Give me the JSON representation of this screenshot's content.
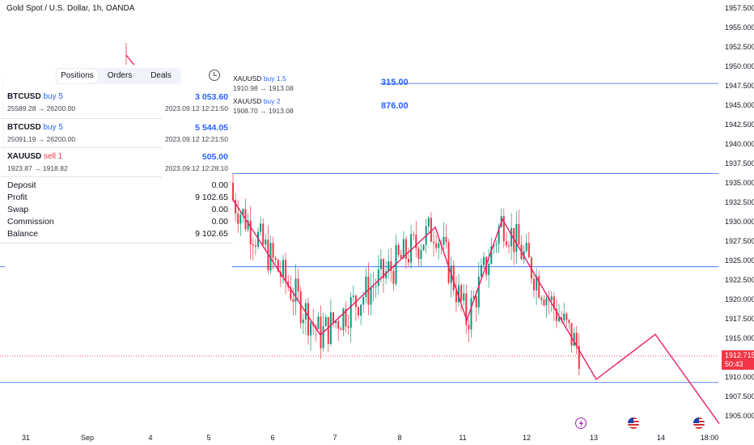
{
  "symbol_title": "Gold Spot / U.S. Dollar, 1h, OANDA",
  "colors": {
    "up": "#089981",
    "down": "#f23645",
    "zigzag": "#e91e63",
    "hline": "#2962ff",
    "accent": "#2962ff"
  },
  "price_axis": {
    "min": 1904,
    "max": 1958,
    "ticks": [
      "1957.500",
      "1955.000",
      "1952.500",
      "1950.000",
      "1947.500",
      "1945.000",
      "1942.500",
      "1940.000",
      "1937.500",
      "1935.000",
      "1932.500",
      "1930.000",
      "1927.500",
      "1925.000",
      "1922.500",
      "1920.000",
      "1917.500",
      "1915.000",
      "1912.500",
      "1910.000",
      "1907.500",
      "1905.000"
    ]
  },
  "time_axis": {
    "labels": [
      "31",
      "Sep",
      "4",
      "5",
      "6",
      "7",
      "8",
      "11",
      "12",
      "13",
      "14",
      "18:00"
    ]
  },
  "current_price": {
    "value": "1912.715",
    "countdown": "50:43"
  },
  "panel": {
    "tabs": [
      {
        "label": "Positions",
        "active": true
      },
      {
        "label": "Orders",
        "active": false
      },
      {
        "label": "Deals",
        "active": false
      }
    ],
    "clock_icon": "clock-icon",
    "positions": [
      {
        "symbol": "BTCUSD",
        "side": "buy 5",
        "type": "buy",
        "profit": "3 053.60",
        "prices": "25589.28 → 26200.00",
        "time": "2023.09.12 12:21:50"
      },
      {
        "symbol": "BTCUSD",
        "side": "buy 5",
        "type": "buy",
        "profit": "5 544.05",
        "prices": "25091.19 → 26200.00",
        "time": "2023.09.12 12:21:50"
      },
      {
        "symbol": "XAUUSD",
        "side": "sell 1",
        "type": "sell",
        "profit": "505.00",
        "prices": "1923.87 → 1918.82",
        "time": "2023.09.12 12:28:10"
      }
    ],
    "summary": [
      {
        "label": "Deposit",
        "value": "0.00"
      },
      {
        "label": "Profit",
        "value": "9 102.65"
      },
      {
        "label": "Swap",
        "value": "0.00"
      },
      {
        "label": "Commission",
        "value": "0.00"
      },
      {
        "label": "Balance",
        "value": "9 102.65"
      }
    ]
  },
  "orders_overlay": [
    {
      "symbol": "XAUUSD",
      "side": "buy 1.5",
      "prices": "1910.98 → 1913.08",
      "value": "315.00"
    },
    {
      "symbol": "XAUUSD",
      "side": "buy 2",
      "prices": "1908.70 → 1913.08",
      "value": "876.00"
    }
  ],
  "horizontal_lines": [
    1947.8,
    1936.2,
    1924.2,
    1909.3
  ],
  "zigzag": [
    {
      "x": 287,
      "price": 1933
    },
    {
      "x": 396,
      "price": 1915.4
    },
    {
      "x": 538,
      "price": 1929.3
    },
    {
      "x": 577,
      "price": 1917.3
    },
    {
      "x": 621,
      "price": 1930.3
    },
    {
      "x": 737,
      "price": 1909.7
    },
    {
      "x": 810,
      "price": 1915.5
    },
    {
      "x": 889,
      "price": 1904
    }
  ],
  "event_icons": [
    "lightning-event-icon",
    "us-flag-event-icon",
    "us-flag-event-icon"
  ]
}
